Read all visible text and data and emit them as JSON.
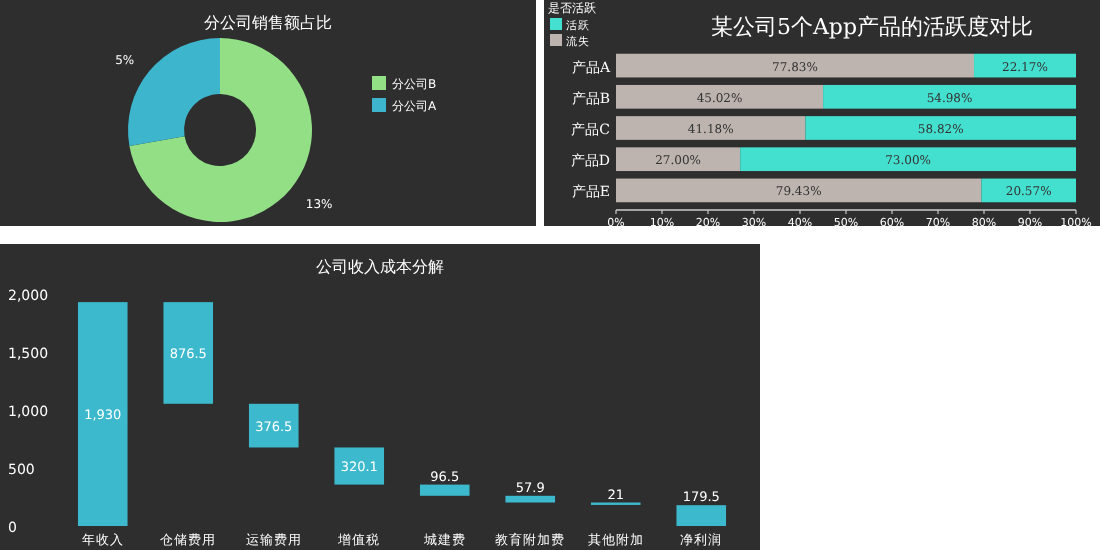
{
  "chart_data": [
    {
      "type": "donut",
      "title": "分公司销售额占比",
      "categories": [
        "分公司B",
        "分公司A"
      ],
      "values": [
        13,
        5
      ],
      "colors": [
        "#92df85",
        "#3db5cd"
      ],
      "value_labels": [
        "13%",
        "5%"
      ],
      "legend": "right"
    },
    {
      "type": "bar",
      "orientation": "horizontal",
      "stacked": true,
      "title": "某公司5个App产品的活跃度对比",
      "legend_title": "是否活跃",
      "legend": "top left",
      "categories": [
        "产品A",
        "产品B",
        "产品C",
        "产品D",
        "产品E"
      ],
      "xlim": [
        0,
        100
      ],
      "xticks": [
        {
          "value": 0,
          "label": "0%"
        },
        {
          "value": 10,
          "label": "10%"
        },
        {
          "value": 20,
          "label": "20%"
        },
        {
          "value": 30,
          "label": "30%"
        },
        {
          "value": 40,
          "label": "40%"
        },
        {
          "value": 50,
          "label": "50%"
        },
        {
          "value": 60,
          "label": "60%"
        },
        {
          "value": 70,
          "label": "70%"
        },
        {
          "value": 80,
          "label": "80%"
        },
        {
          "value": 90,
          "label": "90%"
        },
        {
          "value": 100,
          "label": "100%"
        }
      ],
      "series": [
        {
          "name": "流失",
          "color": "#bdb4af",
          "values": [
            77.83,
            45.02,
            41.18,
            27.0,
            79.43
          ],
          "value_labels": [
            "77.83%",
            "45.02%",
            "41.18%",
            "27.00%",
            "79.43%"
          ]
        },
        {
          "name": "活跃",
          "color": "#44e0cf",
          "values": [
            22.17,
            54.98,
            58.82,
            73.0,
            20.57
          ],
          "value_labels": [
            "22.17%",
            "54.98%",
            "58.82%",
            "73.00%",
            "20.57%"
          ]
        }
      ]
    },
    {
      "type": "bar",
      "title": "公司收入成本分解",
      "categories": [
        "年收入",
        "仓储费用",
        "运输费用",
        "增值税",
        "城建费",
        "教育附加费",
        "其他附加",
        "净利润"
      ],
      "ylim": [
        0,
        2000
      ],
      "yticks": [
        {
          "value": 0,
          "label": "0"
        },
        {
          "value": 500,
          "label": "500"
        },
        {
          "value": 1000,
          "label": "1,000"
        },
        {
          "value": 1500,
          "label": "1,500"
        },
        {
          "value": 2000,
          "label": "2,000"
        }
      ],
      "series": [
        {
          "color": "#3cb9cc",
          "values": [
            1930,
            876.5,
            376.5,
            320.1,
            96.5,
            57.9,
            21,
            179.5
          ],
          "base": [
            0,
            1053.5,
            677,
            356.9,
            260.4,
            202.5,
            181.5,
            0
          ],
          "value_labels": [
            "1,930",
            "876.5",
            "376.5",
            "320.1",
            "96.5",
            "57.9",
            "21",
            "179.5"
          ]
        }
      ]
    }
  ]
}
